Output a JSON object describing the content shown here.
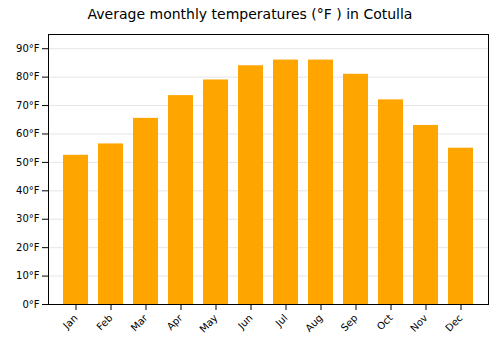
{
  "chart_data": {
    "type": "bar",
    "title": "Average monthly temperatures (°F ) in Cotulla",
    "categories": [
      "Jan",
      "Feb",
      "Mar",
      "Apr",
      "May",
      "Jun",
      "Jul",
      "Aug",
      "Sep",
      "Oct",
      "Nov",
      "Dec"
    ],
    "values": [
      52.5,
      56.5,
      65.5,
      73.5,
      79,
      84,
      86,
      86,
      81,
      72,
      63,
      55
    ],
    "color": "#FFA500",
    "ylim": [
      0,
      95
    ],
    "yticks": [
      {
        "value": 0,
        "label": "0°F"
      },
      {
        "value": 10,
        "label": "10°F"
      },
      {
        "value": 20,
        "label": "20°F"
      },
      {
        "value": 30,
        "label": "30°F"
      },
      {
        "value": 40,
        "label": "40°F"
      },
      {
        "value": 50,
        "label": "50°F"
      },
      {
        "value": 60,
        "label": "60°F"
      },
      {
        "value": 70,
        "label": "70°F"
      },
      {
        "value": 80,
        "label": "80°F"
      },
      {
        "value": 90,
        "label": "90°F"
      }
    ],
    "grid": true
  }
}
